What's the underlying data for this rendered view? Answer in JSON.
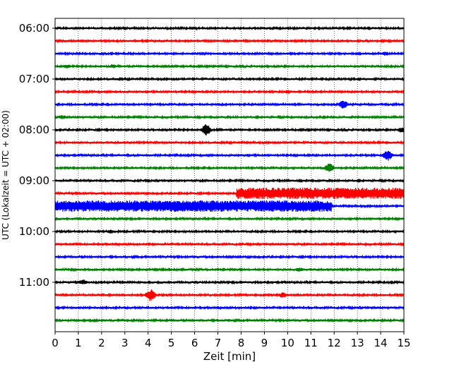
{
  "chart_data": {
    "type": "line",
    "subtype": "helicorder",
    "xlabel": "Zeit  [min]",
    "ylabel": "UTC (Lokalzeit = UTC + 02:00)",
    "xlim": [
      0,
      15
    ],
    "x_ticks": [
      0,
      1,
      2,
      3,
      4,
      5,
      6,
      7,
      8,
      9,
      10,
      11,
      12,
      13,
      14,
      15
    ],
    "y_tick_labels": [
      "06:00",
      "07:00",
      "08:00",
      "09:00",
      "10:00",
      "11:00"
    ],
    "grid": "vertical dotted lines at each minute",
    "trace_color_cycle": [
      "#000000",
      "#ff0000",
      "#0000ff",
      "#008000"
    ],
    "traces": [
      {
        "start": "06:00",
        "events": [
          {
            "minute": 9.0,
            "amp": 2
          }
        ]
      },
      {
        "start": "06:15",
        "events": []
      },
      {
        "start": "06:30",
        "events": [
          {
            "minute": 14.2,
            "amp": 3
          }
        ]
      },
      {
        "start": "06:45",
        "events": [
          {
            "minute": 0.5,
            "amp": 3
          },
          {
            "minute": 2.5,
            "amp": 3
          }
        ]
      },
      {
        "start": "07:00",
        "events": []
      },
      {
        "start": "07:15",
        "events": [
          {
            "minute": 10.0,
            "amp": 3
          }
        ]
      },
      {
        "start": "07:30",
        "events": [
          {
            "minute": 12.4,
            "amp": 6
          },
          {
            "minute": 9.6,
            "amp": 2
          }
        ]
      },
      {
        "start": "07:45",
        "events": [
          {
            "minute": 0.3,
            "amp": 3
          }
        ]
      },
      {
        "start": "08:00",
        "events": [
          {
            "minute": 6.5,
            "amp": 8
          },
          {
            "minute": 14.9,
            "amp": 4
          }
        ]
      },
      {
        "start": "08:15",
        "events": []
      },
      {
        "start": "08:30",
        "events": [
          {
            "minute": 14.3,
            "amp": 8
          }
        ]
      },
      {
        "start": "08:45",
        "events": [
          {
            "minute": 11.8,
            "amp": 7
          }
        ]
      },
      {
        "start": "09:00",
        "events": []
      },
      {
        "start": "09:15",
        "events": [
          {
            "minute": 7.8,
            "amp": 8,
            "until": 15
          }
        ]
      },
      {
        "start": "09:30",
        "events": [
          {
            "minute": 0,
            "amp": 8,
            "until": 11.9
          }
        ]
      },
      {
        "start": "09:45",
        "events": []
      },
      {
        "start": "10:00",
        "events": [
          {
            "minute": 2.4,
            "amp": 3
          }
        ]
      },
      {
        "start": "10:15",
        "events": []
      },
      {
        "start": "10:30",
        "events": []
      },
      {
        "start": "10:45",
        "events": [
          {
            "minute": 10.5,
            "amp": 3
          }
        ]
      },
      {
        "start": "11:00",
        "events": [
          {
            "minute": 1.2,
            "amp": 4
          }
        ]
      },
      {
        "start": "11:15",
        "events": [
          {
            "minute": 4.1,
            "amp": 9
          },
          {
            "minute": 9.8,
            "amp": 4
          }
        ]
      },
      {
        "start": "11:30",
        "events": []
      },
      {
        "start": "11:45",
        "events": [
          {
            "minute": 7.5,
            "amp": 2
          }
        ]
      }
    ]
  }
}
